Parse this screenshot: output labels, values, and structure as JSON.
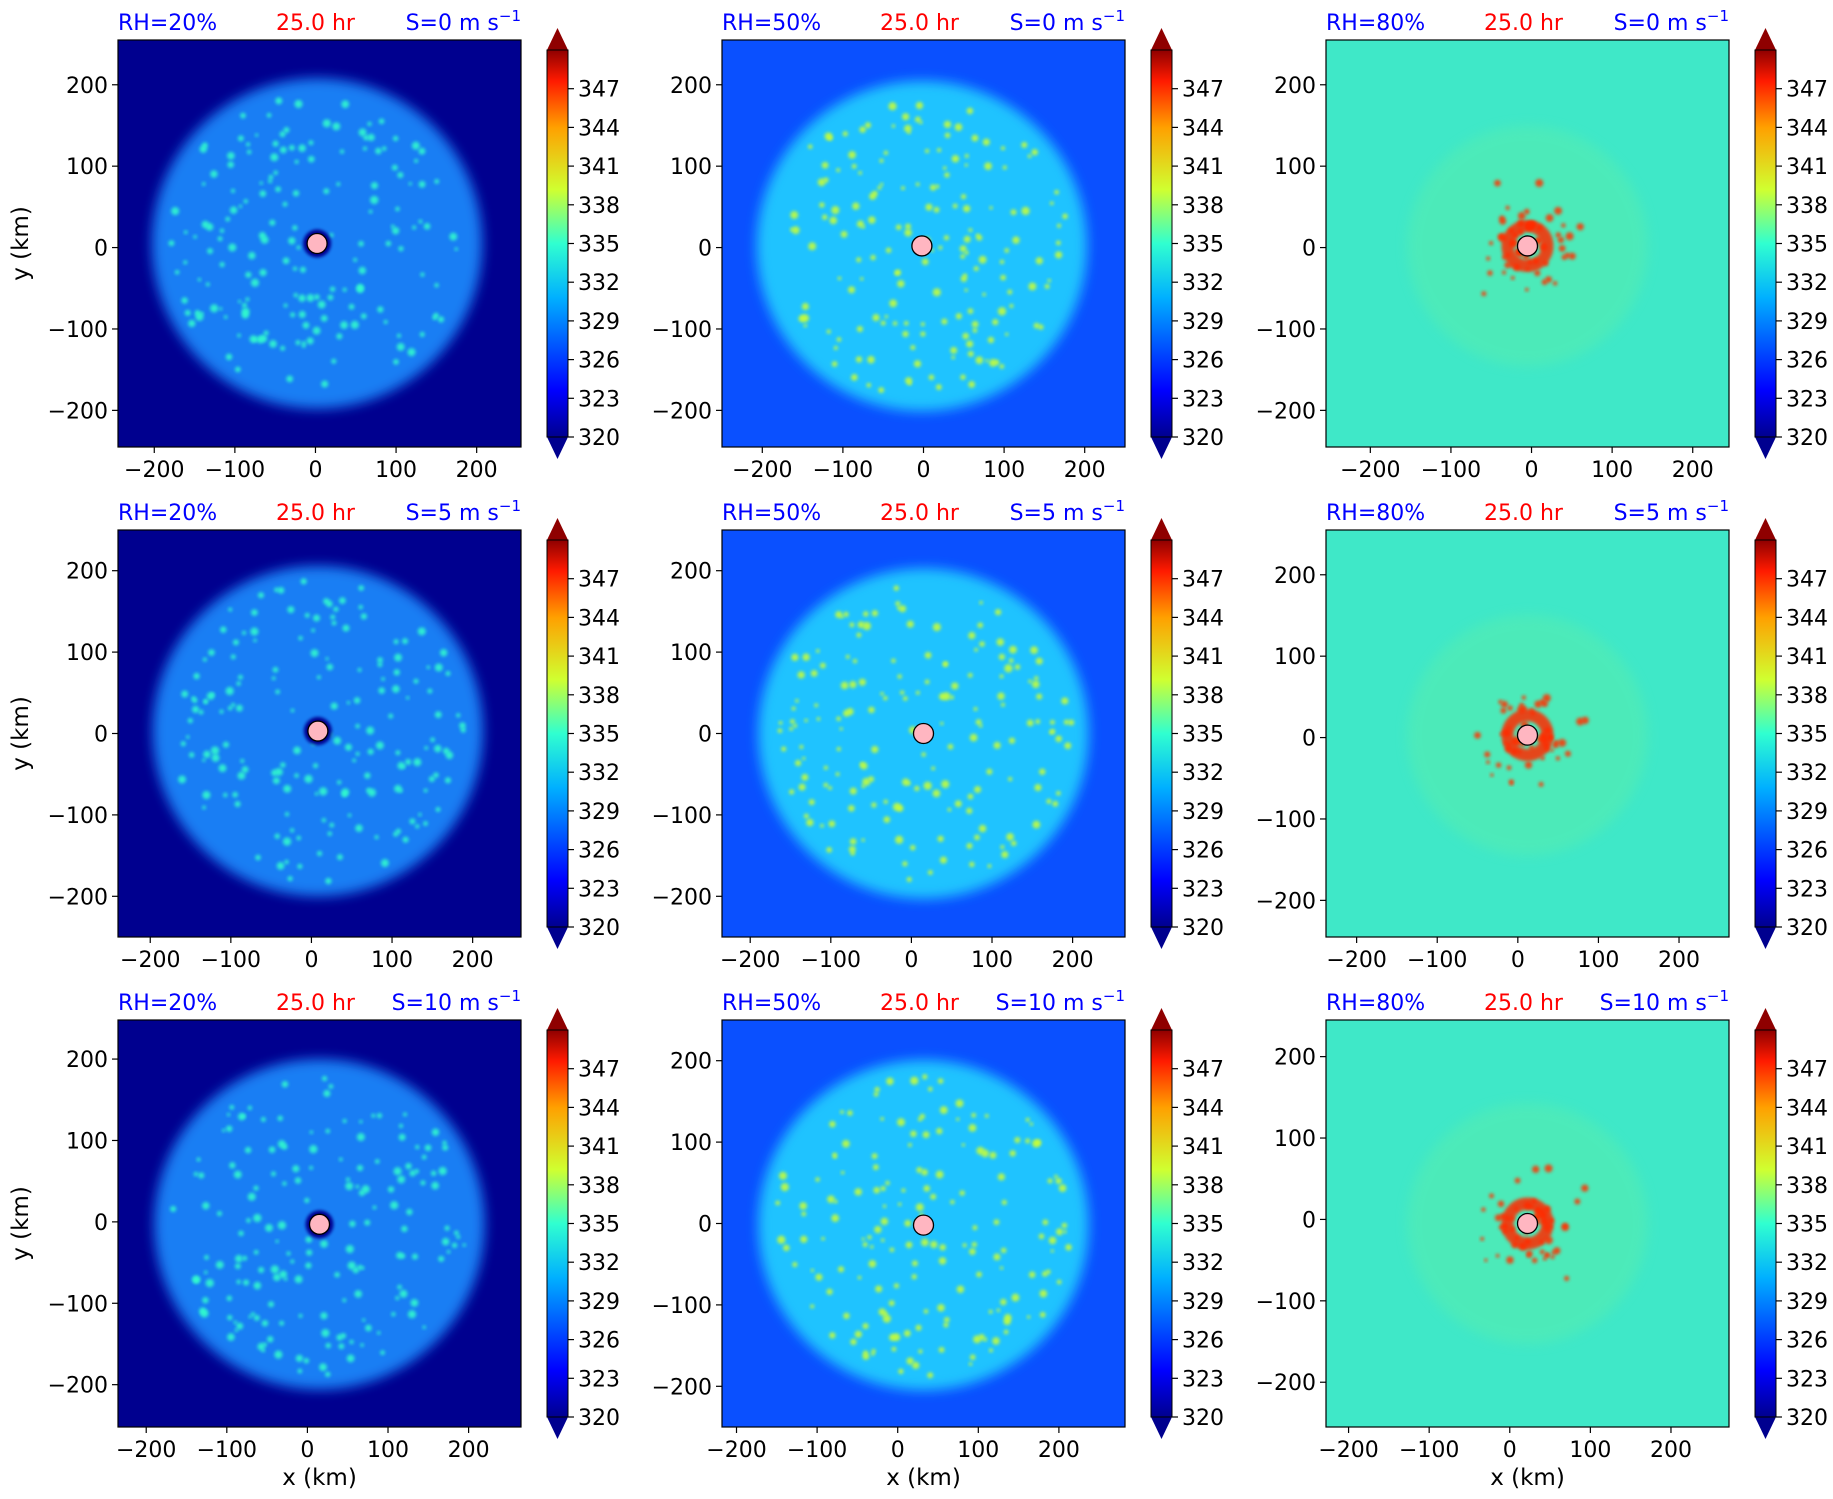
{
  "figure": {
    "xlabel": "x (km)",
    "ylabel": "y (km)",
    "colorbar_ticks": [
      "347",
      "344",
      "341",
      "338",
      "335",
      "332",
      "329",
      "326",
      "323",
      "320"
    ],
    "colors": {
      "rh_label": "#0000ff",
      "time_label": "#ff0000",
      "shear_label": "#0000ff",
      "center_marker": "#ffb6c1"
    }
  },
  "chart_data": [
    {
      "type": "heatmap",
      "rh": "RH=20%",
      "time": "25.0 hr",
      "shear": "S=0 m s",
      "shear_exp": "−1",
      "center_x": 2,
      "center_y": 5,
      "xlim": [
        -245,
        255
      ],
      "ylim": [
        -245,
        255
      ],
      "xticks": [
        -200,
        -100,
        0,
        100,
        200
      ],
      "yticks": [
        -200,
        -100,
        0,
        100,
        200
      ],
      "colorbar_range": [
        320,
        350
      ],
      "background": "#00008f",
      "field": "#1a8cff",
      "spots": "#33ffcc"
    },
    {
      "type": "heatmap",
      "rh": "RH=50%",
      "time": "25.0 hr",
      "shear": "S=0 m s",
      "shear_exp": "−1",
      "center_x": -2,
      "center_y": 2,
      "xlim": [
        -250,
        250
      ],
      "ylim": [
        -245,
        255
      ],
      "xticks": [
        -200,
        -100,
        0,
        100,
        200
      ],
      "yticks": [
        -200,
        -100,
        0,
        100,
        200
      ],
      "colorbar_range": [
        320,
        350
      ],
      "background": "#0a50ff",
      "field": "#20d0ff",
      "spots": "#ccff33"
    },
    {
      "type": "heatmap",
      "rh": "RH=80%",
      "time": "25.0 hr",
      "shear": "S=0 m s",
      "shear_exp": "−1",
      "center_x": -5,
      "center_y": 2,
      "xlim": [
        -255,
        245
      ],
      "ylim": [
        -245,
        255
      ],
      "xticks": [
        -200,
        -100,
        0,
        100,
        200
      ],
      "yticks": [
        -200,
        -100,
        0,
        100,
        200
      ],
      "colorbar_range": [
        320,
        350
      ],
      "background": "#3fe8c8",
      "field": "#66f0a0",
      "spots": "#ff3300"
    },
    {
      "type": "heatmap",
      "rh": "RH=20%",
      "time": "25.0 hr",
      "shear": "S=5 m s",
      "shear_exp": "−1",
      "center_x": 8,
      "center_y": 3,
      "xlim": [
        -240,
        260
      ],
      "ylim": [
        -250,
        250
      ],
      "xticks": [
        -200,
        -100,
        0,
        100,
        200
      ],
      "yticks": [
        -200,
        -100,
        0,
        100,
        200
      ],
      "colorbar_range": [
        320,
        350
      ],
      "background": "#00008f",
      "field": "#1a8cff",
      "spots": "#33ffcc"
    },
    {
      "type": "heatmap",
      "rh": "RH=50%",
      "time": "25.0 hr",
      "shear": "S=5 m s",
      "shear_exp": "−1",
      "center_x": 15,
      "center_y": 0,
      "xlim": [
        -235,
        265
      ],
      "ylim": [
        -250,
        250
      ],
      "xticks": [
        -200,
        -100,
        0,
        100,
        200
      ],
      "yticks": [
        -200,
        -100,
        0,
        100,
        200
      ],
      "colorbar_range": [
        320,
        350
      ],
      "background": "#0a50ff",
      "field": "#20d0ff",
      "spots": "#ccff33"
    },
    {
      "type": "heatmap",
      "rh": "RH=80%",
      "time": "25.0 hr",
      "shear": "S=5 m s",
      "shear_exp": "−1",
      "center_x": 12,
      "center_y": 3,
      "xlim": [
        -238,
        262
      ],
      "ylim": [
        -245,
        255
      ],
      "xticks": [
        -200,
        -100,
        0,
        100,
        200
      ],
      "yticks": [
        -200,
        -100,
        0,
        100,
        200
      ],
      "colorbar_range": [
        320,
        350
      ],
      "background": "#3fe8c8",
      "field": "#66f0a0",
      "spots": "#ff3300"
    },
    {
      "type": "heatmap",
      "rh": "RH=20%",
      "time": "25.0 hr",
      "shear": "S=10 m s",
      "shear_exp": "−1",
      "center_x": 15,
      "center_y": -3,
      "xlim": [
        -235,
        265
      ],
      "ylim": [
        -252,
        248
      ],
      "xticks": [
        -200,
        -100,
        0,
        100,
        200
      ],
      "yticks": [
        -200,
        -100,
        0,
        100,
        200
      ],
      "colorbar_range": [
        320,
        350
      ],
      "background": "#00008f",
      "field": "#1a8cff",
      "spots": "#33ffcc"
    },
    {
      "type": "heatmap",
      "rh": "RH=50%",
      "time": "25.0 hr",
      "shear": "S=10 m s",
      "shear_exp": "−1",
      "center_x": 32,
      "center_y": -2,
      "xlim": [
        -218,
        282
      ],
      "ylim": [
        -250,
        250
      ],
      "xticks": [
        -200,
        -100,
        0,
        100,
        200
      ],
      "yticks": [
        -200,
        -100,
        0,
        100,
        200
      ],
      "colorbar_range": [
        320,
        350
      ],
      "background": "#0a50ff",
      "field": "#20d0ff",
      "spots": "#ccff33"
    },
    {
      "type": "heatmap",
      "rh": "RH=80%",
      "time": "25.0 hr",
      "shear": "S=10 m s",
      "shear_exp": "−1",
      "center_x": 22,
      "center_y": -5,
      "xlim": [
        -228,
        272
      ],
      "ylim": [
        -255,
        245
      ],
      "xticks": [
        -200,
        -100,
        0,
        100,
        200
      ],
      "yticks": [
        -200,
        -100,
        0,
        100,
        200
      ],
      "colorbar_range": [
        320,
        350
      ],
      "background": "#3fe8c8",
      "field": "#66f0a0",
      "spots": "#ff3300"
    }
  ]
}
